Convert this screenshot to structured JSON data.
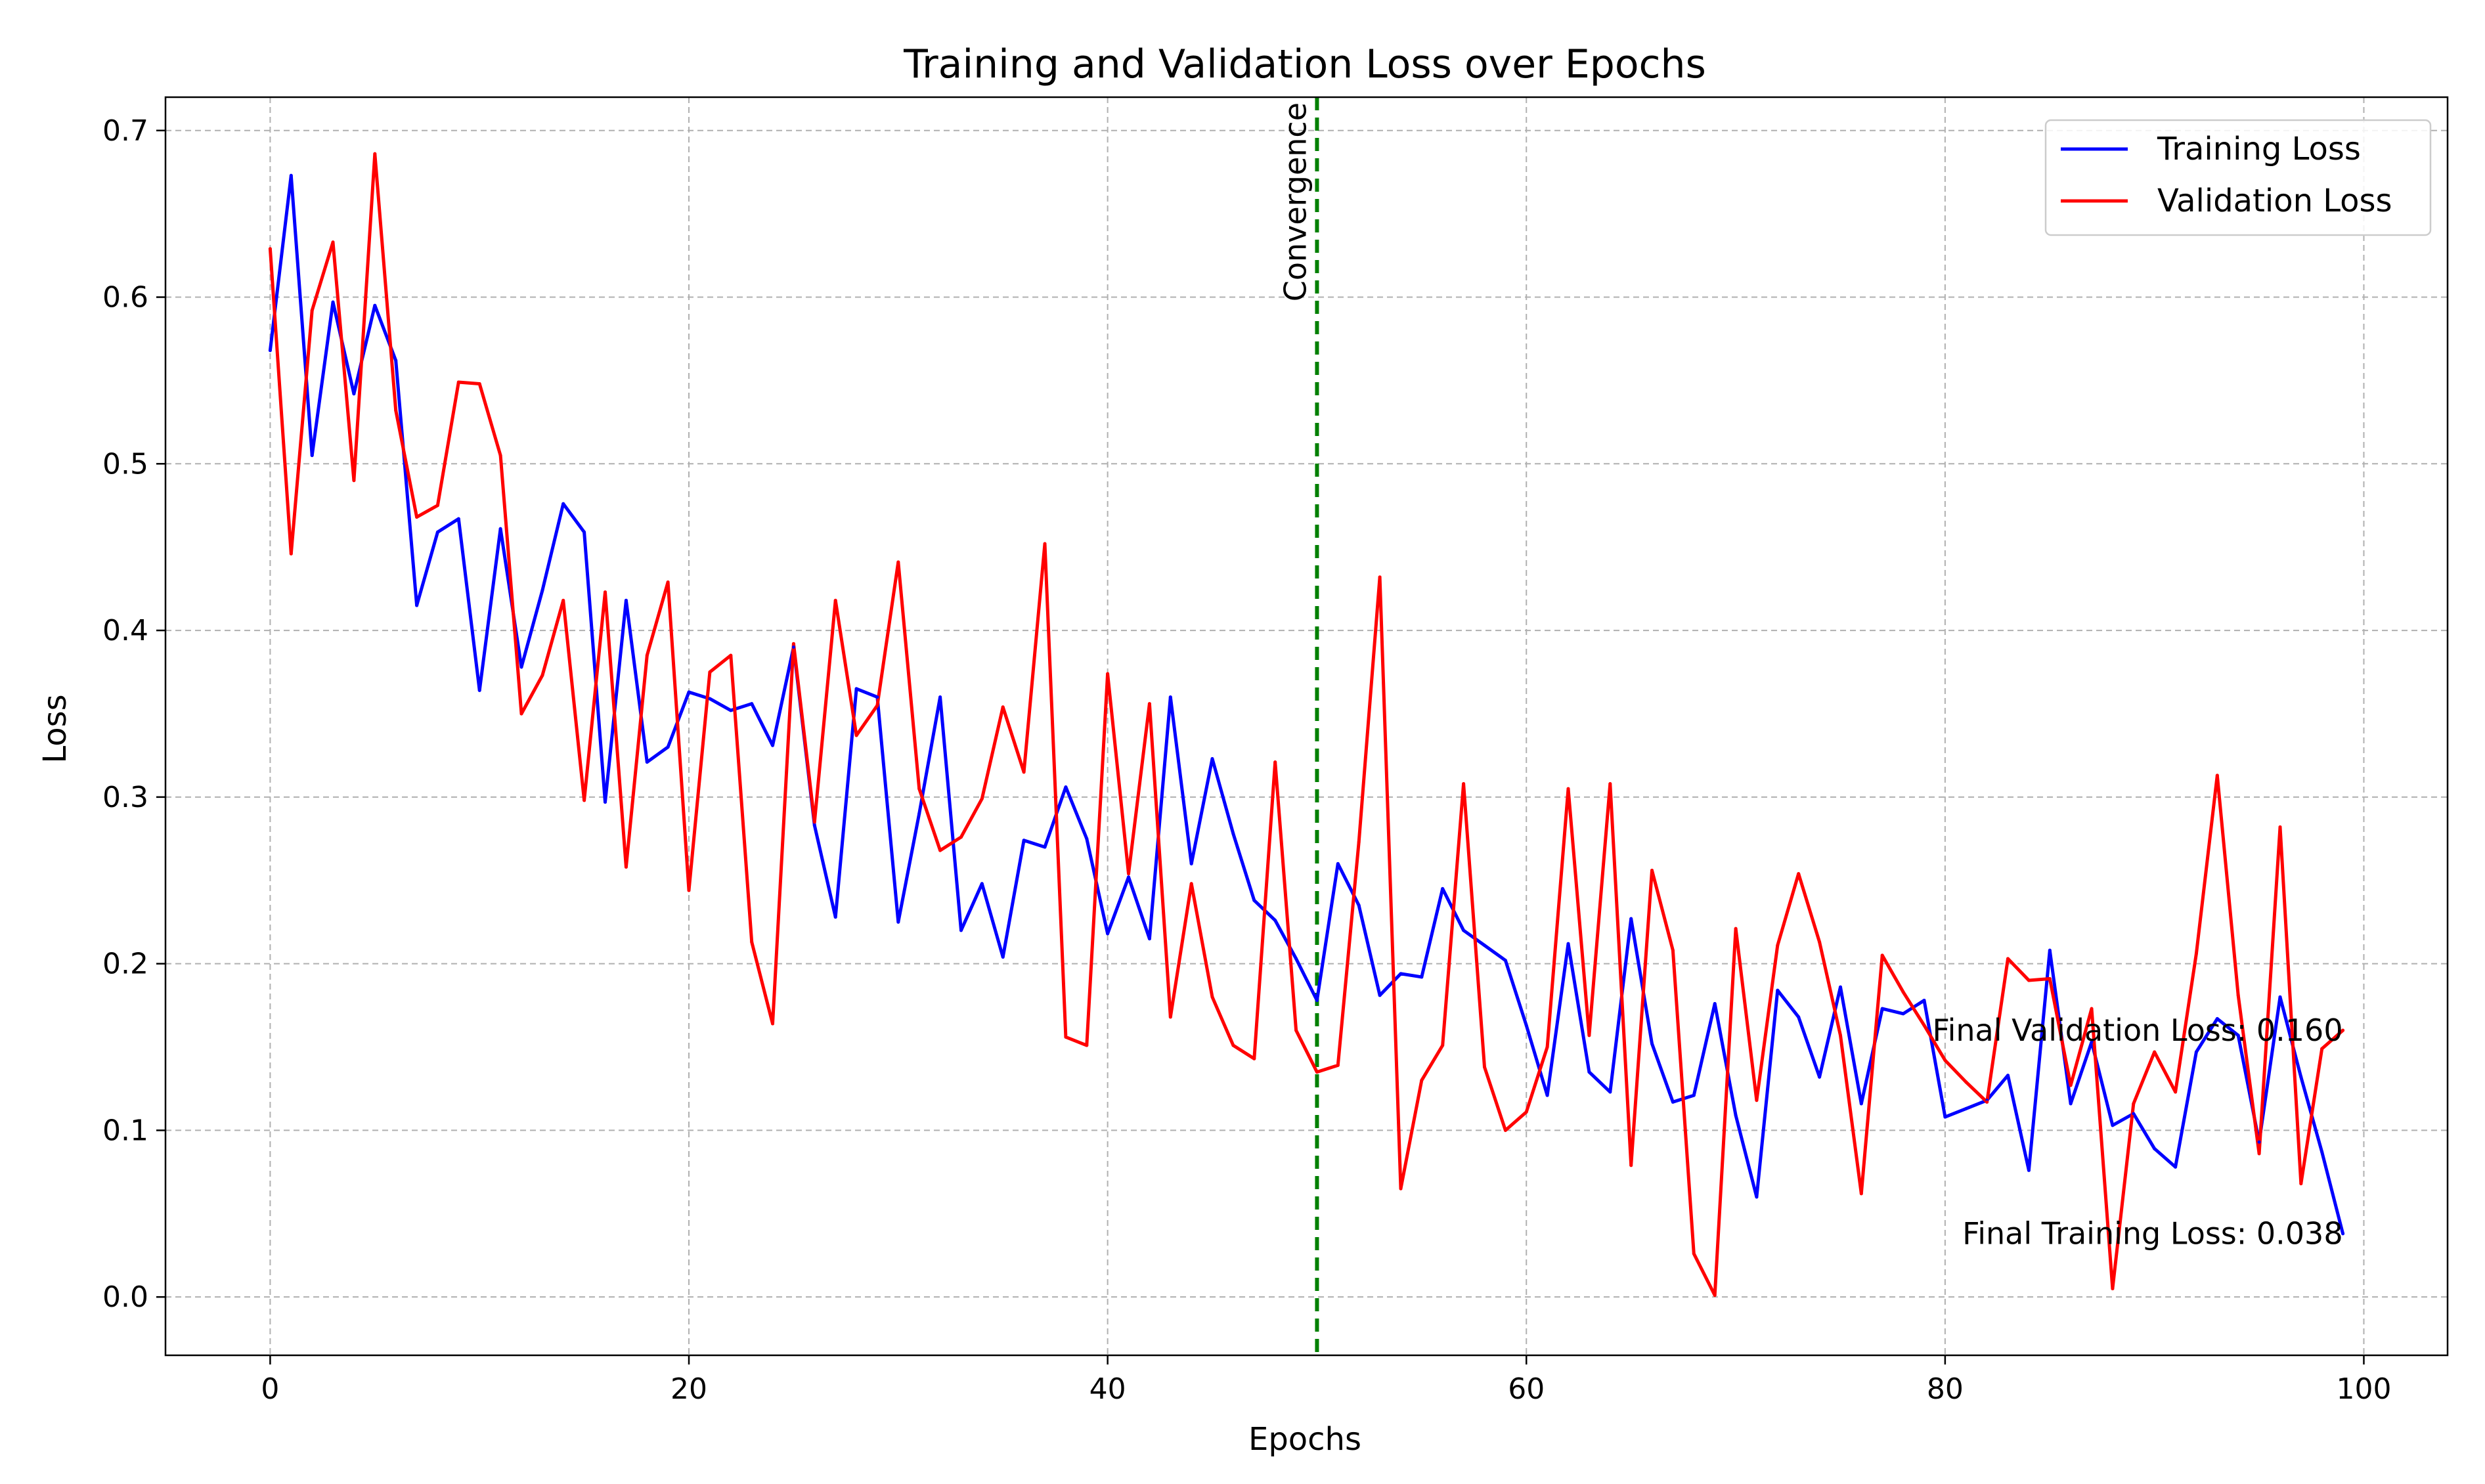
{
  "chart_data": {
    "type": "line",
    "title": "Training and Validation Loss over Epochs",
    "xlabel": "Epochs",
    "ylabel": "Loss",
    "xlim": [
      -5,
      104
    ],
    "ylim": [
      -0.035,
      0.72
    ],
    "xticks": [
      0,
      20,
      40,
      60,
      80,
      100
    ],
    "yticks": [
      0.0,
      0.1,
      0.2,
      0.3,
      0.4,
      0.5,
      0.6,
      0.7
    ],
    "xtick_labels": [
      "0",
      "20",
      "40",
      "60",
      "80",
      "100"
    ],
    "ytick_labels": [
      "0.0",
      "0.1",
      "0.2",
      "0.3",
      "0.4",
      "0.5",
      "0.6",
      "0.7"
    ],
    "grid": true,
    "legend_position": "top-right",
    "x": [
      0,
      1,
      2,
      3,
      4,
      5,
      6,
      7,
      8,
      9,
      10,
      11,
      12,
      13,
      14,
      15,
      16,
      17,
      18,
      19,
      20,
      21,
      22,
      23,
      24,
      25,
      26,
      27,
      28,
      29,
      30,
      31,
      32,
      33,
      34,
      35,
      36,
      37,
      38,
      39,
      40,
      41,
      42,
      43,
      44,
      45,
      46,
      47,
      48,
      49,
      50,
      51,
      52,
      53,
      54,
      55,
      56,
      57,
      58,
      59,
      60,
      61,
      62,
      63,
      64,
      65,
      66,
      67,
      68,
      69,
      70,
      71,
      72,
      73,
      74,
      75,
      76,
      77,
      78,
      79,
      80,
      81,
      82,
      83,
      84,
      85,
      86,
      87,
      88,
      89,
      90,
      91,
      92,
      93,
      94,
      95,
      96,
      97,
      98,
      99
    ],
    "series": [
      {
        "name": "Training Loss",
        "color": "#0000ff",
        "values": [
          0.568,
          0.673,
          0.505,
          0.597,
          0.542,
          0.595,
          0.562,
          0.415,
          0.459,
          0.467,
          0.364,
          0.461,
          0.378,
          0.424,
          0.476,
          0.459,
          0.297,
          0.418,
          0.321,
          0.33,
          0.363,
          0.359,
          0.352,
          0.356,
          0.331,
          0.39,
          0.283,
          0.228,
          0.365,
          0.36,
          0.225,
          0.29,
          0.36,
          0.22,
          0.248,
          0.204,
          0.274,
          0.27,
          0.306,
          0.275,
          0.218,
          0.252,
          0.215,
          0.36,
          0.26,
          0.323,
          0.278,
          0.238,
          0.226,
          0.203,
          0.178,
          0.26,
          0.235,
          0.181,
          0.194,
          0.192,
          0.245,
          0.22,
          0.211,
          0.202,
          0.163,
          0.121,
          0.212,
          0.135,
          0.123,
          0.227,
          0.152,
          0.117,
          0.121,
          0.176,
          0.109,
          0.06,
          0.184,
          0.168,
          0.132,
          0.186,
          0.116,
          0.173,
          0.17,
          0.178,
          0.108,
          0.113,
          0.118,
          0.133,
          0.076,
          0.208,
          0.116,
          0.153,
          0.103,
          0.11,
          0.089,
          0.078,
          0.147,
          0.167,
          0.157,
          0.093,
          0.18,
          0.132,
          0.087,
          0.038
        ]
      },
      {
        "name": "Validation Loss",
        "color": "#ff0000",
        "values": [
          0.629,
          0.446,
          0.592,
          0.633,
          0.49,
          0.686,
          0.532,
          0.468,
          0.475,
          0.549,
          0.548,
          0.505,
          0.35,
          0.373,
          0.418,
          0.298,
          0.423,
          0.258,
          0.385,
          0.429,
          0.244,
          0.375,
          0.385,
          0.213,
          0.164,
          0.392,
          0.285,
          0.418,
          0.337,
          0.355,
          0.441,
          0.305,
          0.268,
          0.276,
          0.299,
          0.354,
          0.315,
          0.452,
          0.156,
          0.151,
          0.374,
          0.254,
          0.356,
          0.168,
          0.248,
          0.18,
          0.151,
          0.143,
          0.321,
          0.16,
          0.135,
          0.139,
          0.273,
          0.432,
          0.065,
          0.13,
          0.151,
          0.308,
          0.138,
          0.1,
          0.111,
          0.15,
          0.305,
          0.157,
          0.308,
          0.079,
          0.256,
          0.208,
          0.026,
          0.001,
          0.221,
          0.118,
          0.211,
          0.254,
          0.213,
          0.157,
          0.062,
          0.205,
          0.183,
          0.163,
          0.142,
          0.129,
          0.117,
          0.203,
          0.19,
          0.191,
          0.127,
          0.173,
          0.005,
          0.116,
          0.147,
          0.123,
          0.206,
          0.313,
          0.181,
          0.086,
          0.282,
          0.068,
          0.149,
          0.16
        ]
      }
    ],
    "vline": {
      "x": 50,
      "label": "Convergence",
      "color": "#008000"
    },
    "annotations": [
      {
        "text": "Final Validation Loss: 0.160",
        "x": 99,
        "y": 0.16
      },
      {
        "text": "Final Training Loss: 0.038",
        "x": 99,
        "y": 0.038
      }
    ]
  }
}
